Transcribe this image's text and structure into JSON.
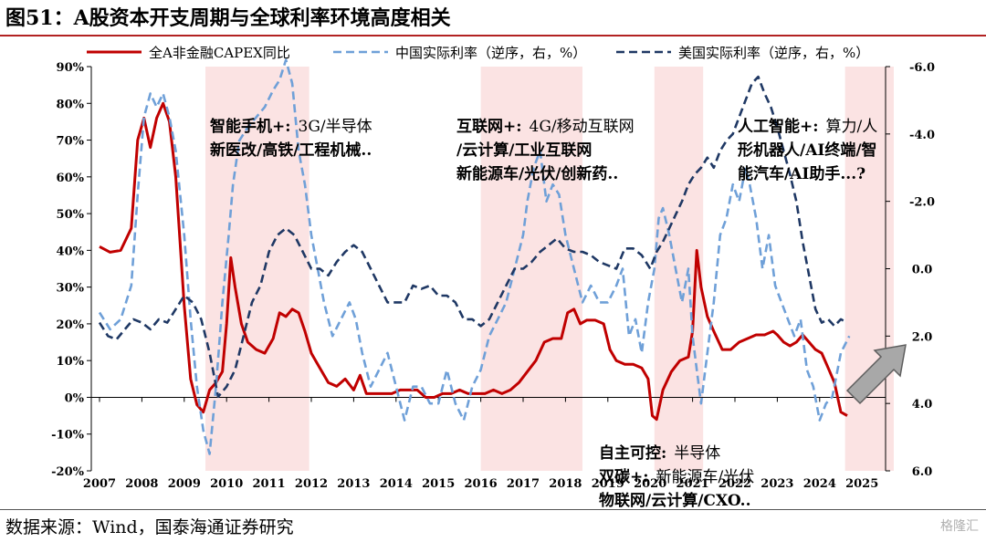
{
  "figure_title": "图51：A股资本开支周期与全球利率环境高度相关",
  "source": "数据来源：Wind，国泰海通证券研究",
  "watermark": "格隆汇",
  "chart_data": {
    "type": "line",
    "legend_position": "top",
    "x_tick_labels": [
      "2007",
      "2008",
      "2009",
      "2010",
      "2011",
      "2012",
      "2013",
      "2014",
      "2015",
      "2016",
      "2017",
      "2018",
      "2019",
      "2020",
      "2021",
      "2022",
      "2023",
      "2024",
      "2025"
    ],
    "x_range": [
      2007.0,
      2025.75
    ],
    "y_left": {
      "min": -20,
      "max": 90,
      "step": 10,
      "tick_labels": [
        "-20%",
        "-10%",
        "0%",
        "10%",
        "20%",
        "30%",
        "40%",
        "50%",
        "60%",
        "70%",
        "80%",
        "90%"
      ]
    },
    "y_right": {
      "reversed": true,
      "min": -6,
      "max": 6,
      "step": 2,
      "tick_labels": [
        "-6.0",
        "-4.0",
        "-2.0",
        "0.0",
        "2.0",
        "4.0",
        "6.0"
      ]
    },
    "shaded_periods": [
      [
        2009.5,
        2011.95
      ],
      [
        2016.0,
        2018.4
      ],
      [
        2020.1,
        2021.25
      ],
      [
        2024.6,
        2025.75
      ]
    ],
    "series": [
      {
        "name": "全A非金融CAPEX同比",
        "axis": "left",
        "color": "#c00000",
        "style": "solid",
        "x": [
          2007.0,
          2007.25,
          2007.5,
          2007.75,
          2007.9,
          2008.05,
          2008.2,
          2008.35,
          2008.5,
          2008.65,
          2008.8,
          2009.0,
          2009.15,
          2009.3,
          2009.45,
          2009.6,
          2009.75,
          2009.9,
          2010.0,
          2010.1,
          2010.2,
          2010.35,
          2010.5,
          2010.7,
          2010.9,
          2011.1,
          2011.25,
          2011.4,
          2011.55,
          2011.7,
          2011.85,
          2012.0,
          2012.2,
          2012.4,
          2012.6,
          2012.8,
          2013.0,
          2013.15,
          2013.3,
          2013.5,
          2013.7,
          2013.9,
          2014.1,
          2014.3,
          2014.5,
          2014.7,
          2014.9,
          2015.1,
          2015.3,
          2015.5,
          2015.7,
          2015.9,
          2016.1,
          2016.3,
          2016.5,
          2016.7,
          2016.9,
          2017.1,
          2017.3,
          2017.5,
          2017.7,
          2017.9,
          2018.05,
          2018.2,
          2018.35,
          2018.5,
          2018.7,
          2018.9,
          2019.05,
          2019.2,
          2019.4,
          2019.6,
          2019.8,
          2019.95,
          2020.05,
          2020.15,
          2020.3,
          2020.5,
          2020.7,
          2020.9,
          2021.0,
          2021.1,
          2021.2,
          2021.35,
          2021.5,
          2021.7,
          2021.9,
          2022.1,
          2022.3,
          2022.5,
          2022.7,
          2022.9,
          2023.0,
          2023.15,
          2023.3,
          2023.45,
          2023.6,
          2023.75,
          2023.9,
          2024.05,
          2024.2,
          2024.35,
          2024.5,
          2024.65
        ],
        "y": [
          41,
          39.5,
          40,
          46,
          70,
          76,
          68,
          76,
          80,
          75,
          60,
          25,
          5,
          -2,
          -4,
          2,
          4,
          7,
          20,
          38,
          30,
          20,
          15,
          13,
          12,
          16,
          23,
          22,
          24,
          23,
          18,
          12,
          8,
          4,
          3,
          5,
          2,
          6,
          1,
          1,
          1,
          1,
          2,
          2,
          2,
          0,
          0,
          1,
          1,
          2,
          1,
          1,
          1,
          2,
          1,
          2,
          4,
          7,
          10,
          15,
          16,
          16,
          23,
          24,
          20,
          21,
          21,
          20,
          13,
          10,
          9,
          9,
          8,
          5,
          -5,
          -6,
          2,
          7,
          10,
          11,
          18,
          40,
          30,
          22,
          18,
          13,
          13,
          15,
          16,
          17,
          17,
          18,
          17,
          15,
          14,
          15,
          17,
          15,
          13,
          12,
          8,
          4,
          -4,
          -5
        ]
      },
      {
        "name": "中国实际利率（逆序，右，%）",
        "axis": "right",
        "color": "#6fa0d8",
        "style": "dash",
        "x": [
          2007.0,
          2007.25,
          2007.5,
          2007.75,
          2007.9,
          2008.05,
          2008.2,
          2008.35,
          2008.5,
          2008.65,
          2008.8,
          2009.0,
          2009.15,
          2009.3,
          2009.45,
          2009.6,
          2009.75,
          2009.9,
          2010.05,
          2010.15,
          2010.3,
          2010.5,
          2010.7,
          2010.9,
          2011.1,
          2011.25,
          2011.4,
          2011.55,
          2011.7,
          2011.85,
          2012.0,
          2012.15,
          2012.3,
          2012.5,
          2012.7,
          2012.9,
          2013.05,
          2013.2,
          2013.4,
          2013.6,
          2013.8,
          2014.0,
          2014.2,
          2014.4,
          2014.6,
          2014.8,
          2015.0,
          2015.2,
          2015.4,
          2015.6,
          2015.8,
          2016.0,
          2016.2,
          2016.4,
          2016.6,
          2016.8,
          2017.0,
          2017.1,
          2017.25,
          2017.4,
          2017.55,
          2017.7,
          2017.85,
          2018.0,
          2018.2,
          2018.4,
          2018.6,
          2018.8,
          2019.0,
          2019.2,
          2019.35,
          2019.5,
          2019.65,
          2019.8,
          2019.95,
          2020.1,
          2020.2,
          2020.3,
          2020.45,
          2020.6,
          2020.75,
          2020.9,
          2021.0,
          2021.1,
          2021.2,
          2021.35,
          2021.5,
          2021.65,
          2021.8,
          2021.95,
          2022.1,
          2022.25,
          2022.35,
          2022.5,
          2022.65,
          2022.8,
          2022.95,
          2023.1,
          2023.25,
          2023.4,
          2023.55,
          2023.7,
          2023.85,
          2024.0,
          2024.15,
          2024.3,
          2024.5,
          2024.7
        ],
        "y": [
          1.3,
          1.8,
          1.5,
          0.5,
          -2.2,
          -4.5,
          -5.2,
          -4.8,
          -5.2,
          -4.5,
          -3.5,
          -1.0,
          1.5,
          3.5,
          4.8,
          5.5,
          3.5,
          1.0,
          -1.0,
          -2.5,
          -3.8,
          -4.2,
          -4.5,
          -4.8,
          -5.3,
          -5.6,
          -6.2,
          -5.5,
          -3.5,
          -2.5,
          -1.0,
          0.0,
          1.0,
          2.0,
          1.5,
          1.0,
          1.5,
          2.5,
          3.5,
          3.0,
          2.5,
          3.5,
          4.5,
          3.5,
          3.5,
          4.0,
          4.0,
          3.0,
          4.0,
          4.5,
          3.5,
          3.0,
          2.0,
          1.5,
          1.0,
          0.0,
          -1.0,
          -2.0,
          -3.0,
          -3.5,
          -2.0,
          -2.5,
          -2.2,
          -1.0,
          0.0,
          1.0,
          0.5,
          1.0,
          1.0,
          0.5,
          0.0,
          2.0,
          1.5,
          2.5,
          1.0,
          0.0,
          -1.5,
          -1.8,
          -1.0,
          0.0,
          1.0,
          0.0,
          2.0,
          3.0,
          4.0,
          2.5,
          1.0,
          -1.0,
          -1.5,
          -2.5,
          -2.0,
          -3.0,
          -2.5,
          -1.5,
          0.0,
          -1.0,
          0.5,
          1.0,
          1.5,
          2.0,
          1.5,
          3.0,
          3.5,
          4.5,
          4.0,
          3.8,
          2.5,
          2.0
        ]
      },
      {
        "name": "美国实际利率（逆序，右，%）",
        "axis": "right",
        "color": "#1f3864",
        "style": "dash",
        "x": [
          2007.0,
          2007.2,
          2007.4,
          2007.6,
          2007.8,
          2008.0,
          2008.2,
          2008.4,
          2008.6,
          2008.8,
          2009.0,
          2009.2,
          2009.4,
          2009.6,
          2009.8,
          2010.0,
          2010.2,
          2010.4,
          2010.6,
          2010.8,
          2011.0,
          2011.2,
          2011.4,
          2011.6,
          2011.8,
          2012.0,
          2012.2,
          2012.4,
          2012.6,
          2012.8,
          2013.0,
          2013.2,
          2013.4,
          2013.6,
          2013.8,
          2014.0,
          2014.2,
          2014.4,
          2014.6,
          2014.8,
          2015.0,
          2015.2,
          2015.4,
          2015.6,
          2015.8,
          2016.0,
          2016.2,
          2016.4,
          2016.6,
          2016.8,
          2017.0,
          2017.2,
          2017.4,
          2017.6,
          2017.8,
          2018.0,
          2018.2,
          2018.4,
          2018.6,
          2018.8,
          2019.0,
          2019.2,
          2019.4,
          2019.6,
          2019.8,
          2020.0,
          2020.15,
          2020.3,
          2020.45,
          2020.6,
          2020.75,
          2020.9,
          2021.05,
          2021.2,
          2021.35,
          2021.5,
          2021.65,
          2021.8,
          2021.95,
          2022.1,
          2022.25,
          2022.4,
          2022.55,
          2022.7,
          2022.85,
          2023.0,
          2023.15,
          2023.3,
          2023.45,
          2023.6,
          2023.75,
          2023.9,
          2024.05,
          2024.2,
          2024.35,
          2024.5,
          2024.65
        ],
        "y": [
          1.6,
          2.0,
          2.1,
          1.8,
          1.5,
          1.6,
          1.8,
          1.5,
          1.6,
          1.2,
          0.8,
          1.0,
          1.5,
          2.5,
          3.8,
          3.5,
          3.0,
          2.0,
          1.0,
          0.5,
          -0.5,
          -1.0,
          -1.2,
          -1.0,
          -0.5,
          0.0,
          0.0,
          0.2,
          -0.2,
          -0.5,
          -0.7,
          -0.5,
          0.0,
          0.5,
          1.0,
          1.0,
          1.0,
          0.5,
          0.6,
          0.5,
          0.8,
          0.8,
          1.0,
          1.5,
          1.5,
          1.7,
          1.5,
          1.0,
          0.5,
          0.0,
          0.0,
          -0.2,
          -0.5,
          -0.7,
          -0.9,
          -0.6,
          -0.5,
          -0.5,
          -0.4,
          -0.2,
          -0.1,
          0.0,
          -0.6,
          -0.6,
          -0.4,
          0.0,
          -0.5,
          -0.8,
          -1.2,
          -1.6,
          -2.0,
          -2.5,
          -2.8,
          -3.0,
          -3.3,
          -3.0,
          -3.5,
          -3.8,
          -4.0,
          -4.5,
          -5.0,
          -5.5,
          -5.7,
          -5.2,
          -4.8,
          -4.2,
          -3.5,
          -2.8,
          -2.0,
          -0.8,
          0.2,
          1.2,
          1.6,
          1.5,
          1.7,
          1.5,
          1.6
        ]
      }
    ],
    "annotations": [
      {
        "lines": [
          [
            "智能手机+:",
            "3G/半导体"
          ],
          [
            "新医改/高铁/工程机械..",
            ""
          ]
        ]
      },
      {
        "lines": [
          [
            "互联网+:",
            "4G/移动互联网"
          ],
          [
            "/云计算/工业互联网",
            ""
          ],
          [
            "新能源车/光伏/创新药..",
            ""
          ]
        ]
      },
      {
        "lines": [
          [
            "人工智能+:",
            "算力/人"
          ],
          [
            "形机器人/AI终端/智",
            ""
          ],
          [
            "能汽车/AI助手...?",
            ""
          ]
        ]
      },
      {
        "lines": [
          [
            "自主可控:",
            "半导体"
          ],
          [
            "双碳+:",
            "新能源车/光伏"
          ],
          [
            "物联网/云计算/CXO..",
            ""
          ]
        ]
      }
    ]
  }
}
